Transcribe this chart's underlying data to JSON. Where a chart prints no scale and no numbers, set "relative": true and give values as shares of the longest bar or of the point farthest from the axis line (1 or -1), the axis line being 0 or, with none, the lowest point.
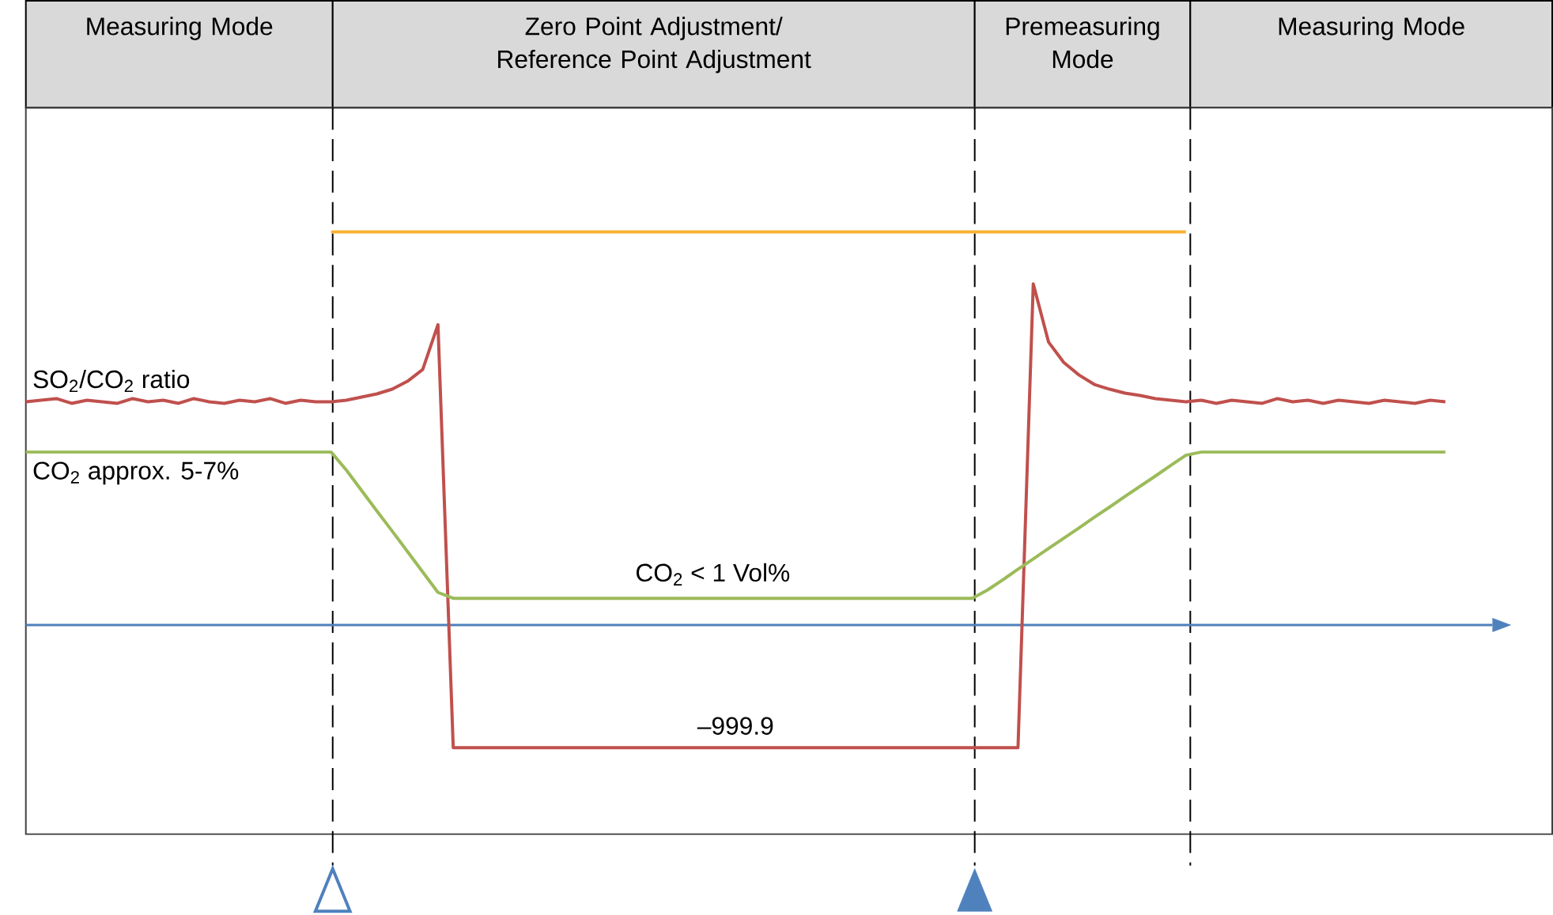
{
  "chart_data": {
    "type": "line",
    "relative": true,
    "marker": "none",
    "categories": [
      null,
      null,
      null,
      null,
      null,
      null,
      null,
      null,
      null,
      null,
      null,
      null,
      null,
      null,
      null,
      null,
      null,
      null,
      null,
      null,
      null,
      null,
      null,
      null,
      null,
      null,
      null,
      null,
      null,
      null,
      null,
      null,
      null,
      null,
      null,
      null,
      null,
      null,
      null,
      null,
      null,
      null,
      null,
      null,
      null,
      null,
      null,
      null,
      null,
      null,
      null,
      null,
      null,
      null,
      null,
      null,
      null,
      null,
      null,
      null,
      null,
      null,
      null,
      null,
      null,
      null,
      null,
      null,
      null,
      null,
      null,
      null,
      null,
      null,
      null,
      null,
      null,
      null,
      null,
      null,
      null,
      null,
      null,
      null,
      null,
      null,
      null,
      null,
      null,
      null,
      null,
      null,
      null,
      null
    ],
    "series": [
      {
        "name": "SO$_{2}$/CO$_{2}$ ratio",
        "color": "#c0504d",
        "values": [
          0.568,
          0.572,
          0.576,
          0.564,
          0.572,
          0.568,
          0.564,
          0.576,
          0.568,
          0.572,
          0.564,
          0.576,
          0.568,
          0.564,
          0.572,
          0.568,
          0.576,
          0.564,
          0.572,
          0.568,
          0.568,
          0.572,
          0.58,
          0.588,
          0.6,
          0.62,
          0.65,
          0.764,
          -0.312,
          -0.312,
          -0.312,
          -0.312,
          -0.312,
          -0.312,
          -0.312,
          -0.312,
          -0.312,
          -0.312,
          -0.312,
          -0.312,
          -0.312,
          -0.312,
          -0.312,
          -0.312,
          -0.312,
          -0.312,
          -0.312,
          -0.312,
          -0.312,
          -0.312,
          -0.312,
          -0.312,
          -0.312,
          -0.312,
          -0.312,
          -0.312,
          -0.312,
          -0.312,
          -0.312,
          -0.312,
          -0.312,
          -0.312,
          -0.312,
          -0.312,
          -0.312,
          -0.312,
          0.868,
          0.72,
          0.668,
          0.636,
          0.612,
          0.6,
          0.59,
          0.584,
          0.576,
          0.572,
          0.568,
          0.572,
          0.564,
          0.572,
          0.568,
          0.564,
          0.576,
          0.568,
          0.572,
          0.564,
          0.572,
          0.568,
          0.564,
          0.572,
          0.568,
          0.564,
          0.572,
          0.568
        ]
      },
      {
        "name": "CO$_{2}$ approx. 5-7%",
        "color": "#9bbb59",
        "values": [
          0.44,
          0.44,
          0.44,
          0.44,
          0.44,
          0.44,
          0.44,
          0.44,
          0.44,
          0.44,
          0.44,
          0.44,
          0.44,
          0.44,
          0.44,
          0.44,
          0.44,
          0.44,
          0.44,
          0.44,
          0.44,
          0.394,
          0.342,
          0.29,
          0.239,
          0.187,
          0.135,
          0.083,
          0.068,
          0.068,
          0.068,
          0.068,
          0.068,
          0.068,
          0.068,
          0.068,
          0.068,
          0.068,
          0.068,
          0.068,
          0.068,
          0.068,
          0.068,
          0.068,
          0.068,
          0.068,
          0.068,
          0.068,
          0.068,
          0.068,
          0.068,
          0.068,
          0.068,
          0.068,
          0.068,
          0.068,
          0.068,
          0.068,
          0.068,
          0.068,
          0.068,
          0.068,
          0.068,
          0.089,
          0.115,
          0.142,
          0.168,
          0.195,
          0.221,
          0.247,
          0.274,
          0.3,
          0.327,
          0.353,
          0.379,
          0.406,
          0.432,
          0.44,
          0.44,
          0.44,
          0.44,
          0.44,
          0.44,
          0.44,
          0.44,
          0.44,
          0.44,
          0.44,
          0.44,
          0.44,
          0.44,
          0.44,
          0.44,
          0.44
        ]
      },
      {
        "color": "#f9b233",
        "values": [
          null,
          null,
          null,
          null,
          null,
          null,
          null,
          null,
          null,
          null,
          null,
          null,
          null,
          null,
          null,
          null,
          null,
          null,
          null,
          null,
          1,
          1,
          1,
          1,
          1,
          1,
          1,
          1,
          1,
          1,
          1,
          1,
          1,
          1,
          1,
          1,
          1,
          1,
          1,
          1,
          1,
          1,
          1,
          1,
          1,
          1,
          1,
          1,
          1,
          1,
          1,
          1,
          1,
          1,
          1,
          1,
          1,
          1,
          1,
          1,
          1,
          1,
          1,
          1,
          1,
          1,
          1,
          1,
          1,
          1,
          1,
          1,
          1,
          1,
          1,
          1,
          1,
          null,
          null,
          null,
          null,
          null,
          null,
          null,
          null,
          null,
          null,
          null,
          null,
          null,
          null,
          null,
          null,
          null
        ]
      }
    ],
    "annotations": [
      "Measuring Mode",
      "Zero Point Adjustment/ Reference Point Adjustment",
      "Premeasuring Mode",
      "Measuring Mode",
      {
        "text": "CO$_{2}$ < 1 Vol%",
        "y": 0.068
      },
      {
        "text": "–999.9",
        "y": -0.312
      }
    ],
    "ref_lines": [
      {
        "axis": "y",
        "value": 0,
        "color": "#4f81bd"
      }
    ]
  }
}
